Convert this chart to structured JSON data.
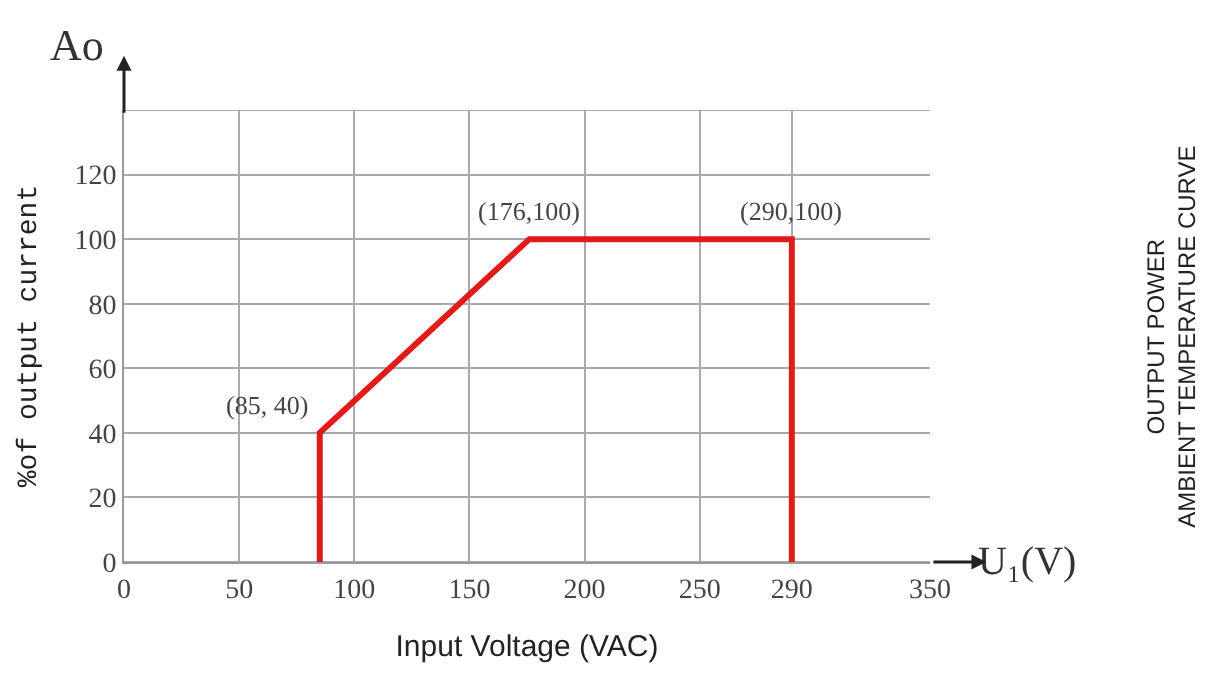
{
  "chart_data": {
    "type": "line",
    "x": [
      85,
      85,
      176,
      290,
      290
    ],
    "series": [
      {
        "color": "#e01b1b",
        "values": [
          0,
          40,
          100,
          100,
          0
        ]
      }
    ],
    "xlabel": "Input Voltage (VAC)",
    "ylabel": "%of output current",
    "xlim": [
      0,
      350
    ],
    "ylim": [
      0,
      140
    ],
    "xticks": [
      0,
      50,
      100,
      150,
      200,
      250,
      290,
      350
    ],
    "yticks": [
      0,
      20,
      40,
      60,
      80,
      100,
      120,
      {
        "value": 140,
        "label": null
      }
    ],
    "grid": true,
    "marker": "none",
    "line_style": "solid",
    "annotations": [
      {
        "text": "(85, 40)",
        "x": 85,
        "y": 40
      },
      {
        "text": "(176,100)",
        "x": 176,
        "y": 100
      },
      {
        "text": "(290,100)",
        "x": 290,
        "y": 100
      },
      "Ao",
      "U₁(V)",
      "OUTPUT POWER\nAMBIENT TEMPERATURE CURVE"
    ]
  }
}
